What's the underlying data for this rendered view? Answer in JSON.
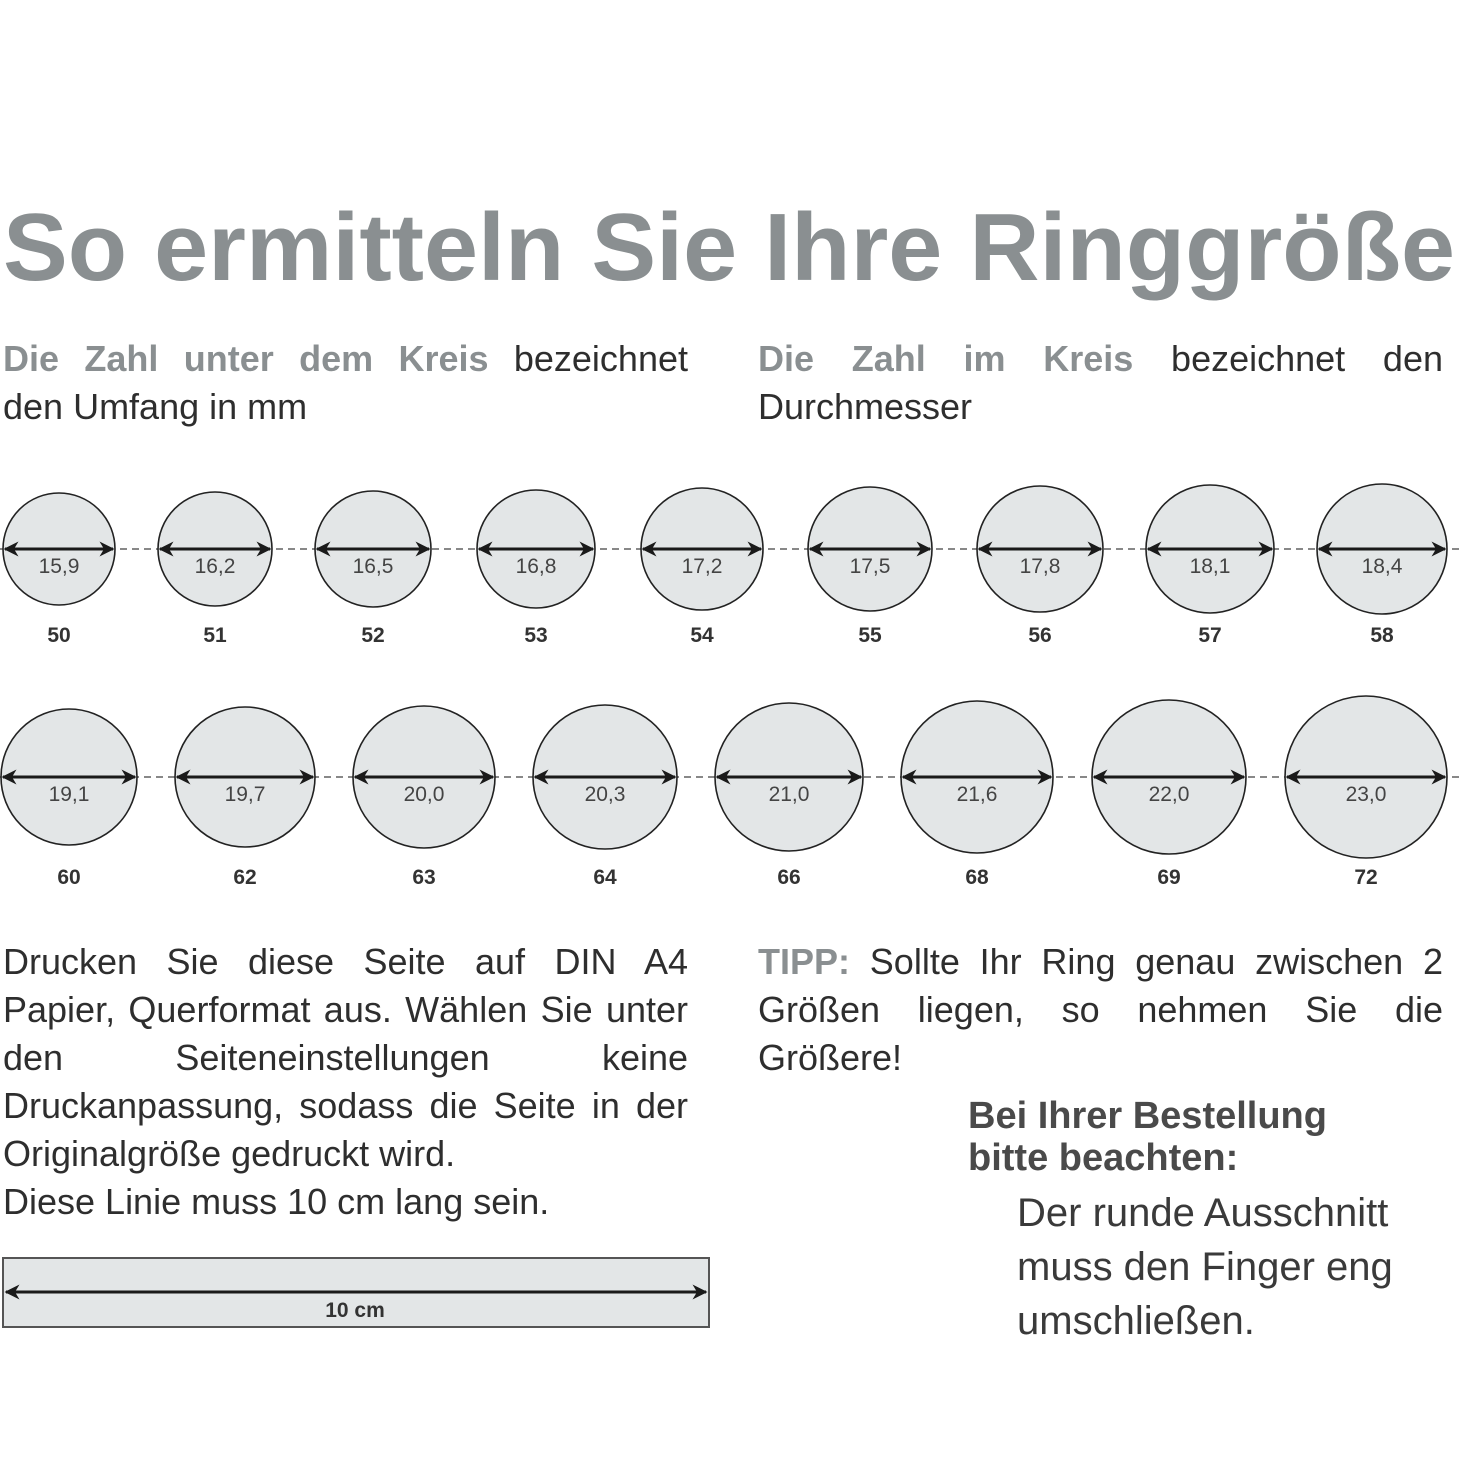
{
  "title": "So ermitteln Sie Ihre Ringgröße",
  "intro_left": {
    "highlight": "Die Zahl unter dem Kreis",
    "rest_line1": " bezeichnet",
    "line2": "den Umfang in mm"
  },
  "intro_right": {
    "highlight": "Die Zahl im Kreis",
    "rest_line1": " bezeichnet den",
    "line2": "Durchmesser"
  },
  "rings": {
    "row1": [
      {
        "diameter": "15,9",
        "circumference": "50"
      },
      {
        "diameter": "16,2",
        "circumference": "51"
      },
      {
        "diameter": "16,5",
        "circumference": "52"
      },
      {
        "diameter": "16,8",
        "circumference": "53"
      },
      {
        "diameter": "17,2",
        "circumference": "54"
      },
      {
        "diameter": "17,5",
        "circumference": "55"
      },
      {
        "diameter": "17,8",
        "circumference": "56"
      },
      {
        "diameter": "18,1",
        "circumference": "57"
      },
      {
        "diameter": "18,4",
        "circumference": "58"
      }
    ],
    "row2": [
      {
        "diameter": "19,1",
        "circumference": "60"
      },
      {
        "diameter": "19,7",
        "circumference": "62"
      },
      {
        "diameter": "20,0",
        "circumference": "63"
      },
      {
        "diameter": "20,3",
        "circumference": "64"
      },
      {
        "diameter": "21,0",
        "circumference": "66"
      },
      {
        "diameter": "21,6",
        "circumference": "68"
      },
      {
        "diameter": "22,0",
        "circumference": "69"
      },
      {
        "diameter": "23,0",
        "circumference": "72"
      }
    ]
  },
  "print_instructions": "Drucken Sie diese Seite auf DIN A4 Papier, Querformat aus. Wählen Sie unter den Seiteneinstellungen keine Druckanpassung, sodass die Seite in der Originalgröße gedruckt wird.",
  "line_note": "Diese Linie muss 10 cm lang sein.",
  "ruler_label": "10 cm",
  "tip": {
    "label": "TIPP:",
    "text": " Sollte Ihr Ring genau zwischen 2 Größen liegen, so nehmen Sie die Größere!"
  },
  "order_note": {
    "heading_line1": "Bei Ihrer Bestellung",
    "heading_line2": "bitte beachten:",
    "line1": "Der runde Ausschnitt",
    "line2": "muss den Finger eng",
    "line3": "umschließen."
  },
  "colors": {
    "title_gray": "#8a8f91",
    "circle_fill": "#e3e6e7",
    "text": "#2e2e2e"
  }
}
